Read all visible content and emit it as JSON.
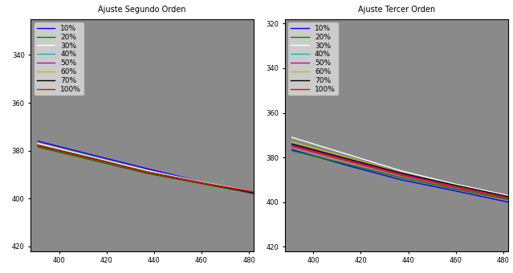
{
  "chart_data": [
    {
      "type": "line",
      "title": "Ajuste Segundo Orden",
      "x": [
        391,
        414,
        437,
        460,
        482
      ],
      "xlim": [
        388,
        482
      ],
      "xticks": [
        400,
        420,
        440,
        460,
        480
      ],
      "ylim": [
        422,
        325
      ],
      "yticks": [
        340,
        360,
        380,
        400,
        420
      ],
      "legend": "upper left",
      "series": [
        {
          "name": "10%",
          "color": "#0000ff",
          "values": [
            376,
            381.8,
            387.5,
            393,
            398
          ]
        },
        {
          "name": "20%",
          "color": "#008000",
          "values": [
            378.5,
            384,
            389.5,
            393.8,
            397.8
          ]
        },
        {
          "name": "30%",
          "color": "#ffffff",
          "values": [
            377,
            382.7,
            388.3,
            393,
            397.3
          ]
        },
        {
          "name": "40%",
          "color": "#00bfbf",
          "values": [
            377.5,
            383,
            388.7,
            393.2,
            397.5
          ]
        },
        {
          "name": "50%",
          "color": "#bf00bf",
          "values": [
            377.7,
            383.2,
            388.8,
            393.3,
            397.4
          ]
        },
        {
          "name": "60%",
          "color": "#bfbf00",
          "values": [
            377.5,
            383.1,
            388.8,
            393.3,
            397.5
          ]
        },
        {
          "name": "70%",
          "color": "#000000",
          "values": [
            377.8,
            383.3,
            389,
            393.5,
            397.6
          ]
        },
        {
          "name": "100%",
          "color": "#ff0000",
          "values": [
            378,
            383.5,
            389,
            393.5,
            397.2
          ]
        }
      ]
    },
    {
      "type": "line",
      "title": "Ajuste Tercer Orden",
      "x": [
        391,
        414,
        437,
        460,
        482
      ],
      "xlim": [
        388,
        482
      ],
      "xticks": [
        400,
        420,
        440,
        460,
        480
      ],
      "ylim": [
        422,
        318
      ],
      "yticks": [
        320,
        340,
        360,
        380,
        400,
        420
      ],
      "legend": "upper left",
      "series": [
        {
          "name": "10%",
          "color": "#0000ff",
          "values": [
            376.5,
            383.5,
            390,
            395,
            400
          ]
        },
        {
          "name": "20%",
          "color": "#008000",
          "values": [
            377,
            383,
            389,
            394.2,
            398.8
          ]
        },
        {
          "name": "30%",
          "color": "#ffffff",
          "values": [
            371,
            378.5,
            386,
            392,
            397
          ]
        },
        {
          "name": "40%",
          "color": "#00bfbf",
          "values": [
            374,
            380.5,
            387,
            392.8,
            398
          ]
        },
        {
          "name": "50%",
          "color": "#bf00bf",
          "values": [
            374.5,
            381,
            387.5,
            393,
            398
          ]
        },
        {
          "name": "60%",
          "color": "#bfbf00",
          "values": [
            373,
            380,
            386.8,
            392.5,
            397.5
          ]
        },
        {
          "name": "70%",
          "color": "#000000",
          "values": [
            374,
            380.5,
            387,
            392.5,
            397.5
          ]
        },
        {
          "name": "100%",
          "color": "#ff0000",
          "values": [
            375,
            381.5,
            388,
            393.5,
            398.3
          ]
        }
      ]
    }
  ]
}
